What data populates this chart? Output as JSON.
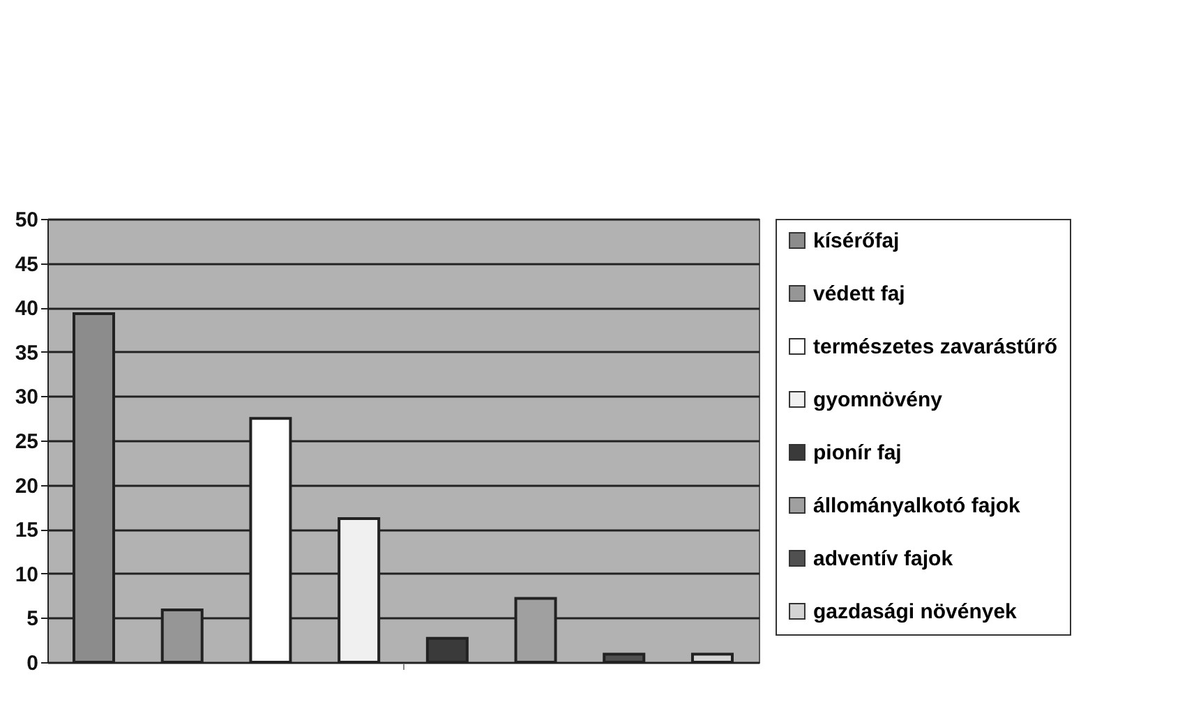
{
  "chart_data": {
    "type": "bar",
    "categories": [
      null
    ],
    "series": [
      {
        "name": "kísérőfaj",
        "color": "#8c8c8c",
        "values": [
          39.3
        ]
      },
      {
        "name": "védett faj",
        "color": "#969696",
        "values": [
          5.9
        ]
      },
      {
        "name": "természetes zavarástűrő",
        "color": "#ffffff",
        "values": [
          27.5
        ]
      },
      {
        "name": "gyomnövény",
        "color": "#f0f0f0",
        "values": [
          16.2
        ]
      },
      {
        "name": "pionír faj",
        "color": "#3a3a3a",
        "values": [
          2.7
        ]
      },
      {
        "name": "állományalkotó fajok",
        "color": "#a0a0a0",
        "values": [
          7.2
        ]
      },
      {
        "name": "adventív fajok",
        "color": "#505050",
        "values": [
          0.9
        ]
      },
      {
        "name": "gazdasági növények",
        "color": "#d4d4d4",
        "values": [
          0.9
        ]
      }
    ],
    "ylim": [
      0,
      50
    ],
    "yticks": [
      0,
      5,
      10,
      15,
      20,
      25,
      30,
      35,
      40,
      45,
      50
    ],
    "grid": "y",
    "legend": "right",
    "tick_labels": "y"
  }
}
